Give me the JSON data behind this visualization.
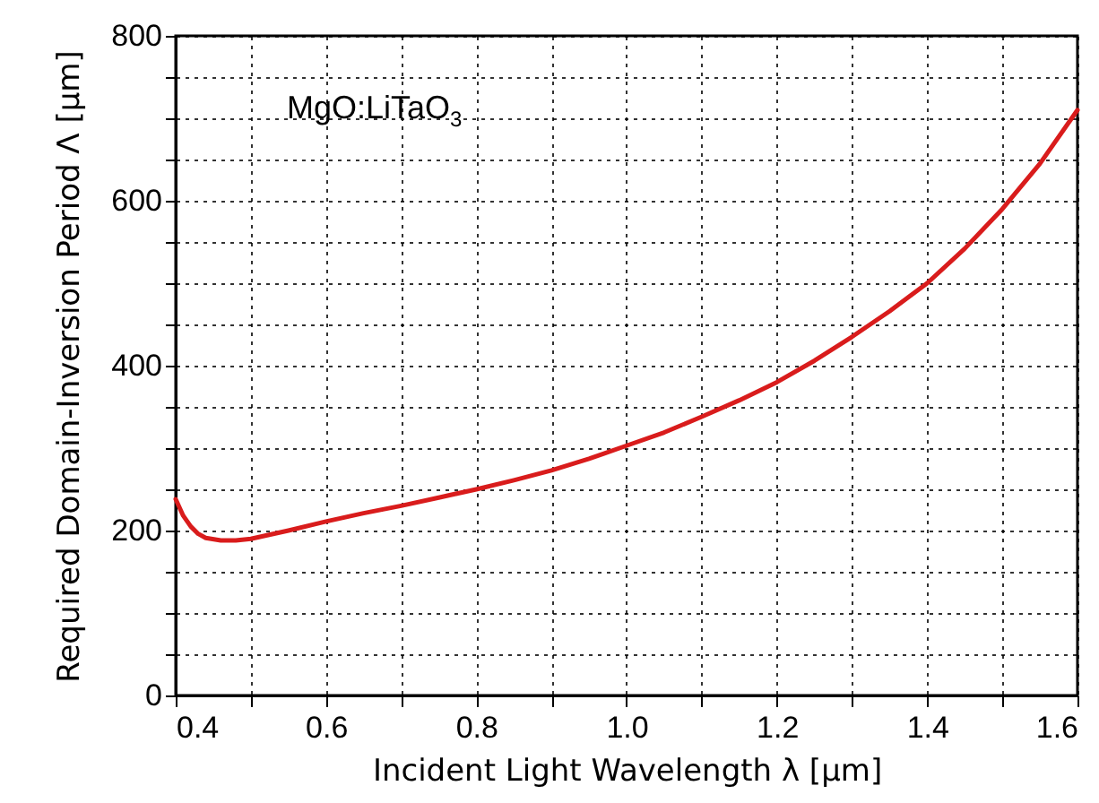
{
  "chart_data": {
    "type": "line",
    "xlabel": "Incident Light Wavelength λ [μm]",
    "ylabel": "Required Domain-Inversion Period Λ [μm]",
    "annotations": [
      "MgO:LiTaO$_{3}$"
    ],
    "x": [
      0.4,
      0.41,
      0.42,
      0.43,
      0.44,
      0.46,
      0.48,
      0.5,
      0.55,
      0.6,
      0.65,
      0.7,
      0.75,
      0.8,
      0.85,
      0.9,
      0.95,
      1.0,
      1.05,
      1.1,
      1.15,
      1.2,
      1.25,
      1.3,
      1.35,
      1.4,
      1.45,
      1.5,
      1.55,
      1.6
    ],
    "series": [
      {
        "color": "#d91c1c",
        "values": [
          238,
          218,
          205,
          196,
          191,
          188,
          188,
          190,
          200,
          211,
          221,
          230,
          240,
          250,
          261,
          273,
          287,
          303,
          319,
          338,
          358,
          380,
          406,
          435,
          466,
          500,
          542,
          590,
          645,
          710
        ]
      }
    ],
    "xlim": [
      0.4,
      1.6
    ],
    "ylim": [
      0,
      800
    ],
    "xticks": [
      0.4,
      {
        "value": 0.5,
        "label": null
      },
      0.6,
      {
        "value": 0.7,
        "label": null
      },
      0.8,
      {
        "value": 0.9,
        "label": null
      },
      {
        "value": 1.0,
        "label": "1.0"
      },
      {
        "value": 1.1,
        "label": null
      },
      1.2,
      {
        "value": 1.3,
        "label": null
      },
      1.4,
      {
        "value": 1.5,
        "label": null
      },
      1.6
    ],
    "yticks": [
      0,
      {
        "value": 50,
        "label": null
      },
      {
        "value": 100,
        "label": null
      },
      {
        "value": 150,
        "label": null
      },
      200,
      {
        "value": 250,
        "label": null
      },
      {
        "value": 300,
        "label": null
      },
      {
        "value": 350,
        "label": null
      },
      400,
      {
        "value": 450,
        "label": null
      },
      {
        "value": 500,
        "label": null
      },
      {
        "value": 550,
        "label": null
      },
      600,
      {
        "value": 650,
        "label": null
      },
      {
        "value": 700,
        "label": null
      },
      {
        "value": 750,
        "label": null
      },
      800
    ],
    "grid": true,
    "line_style": "solid"
  }
}
